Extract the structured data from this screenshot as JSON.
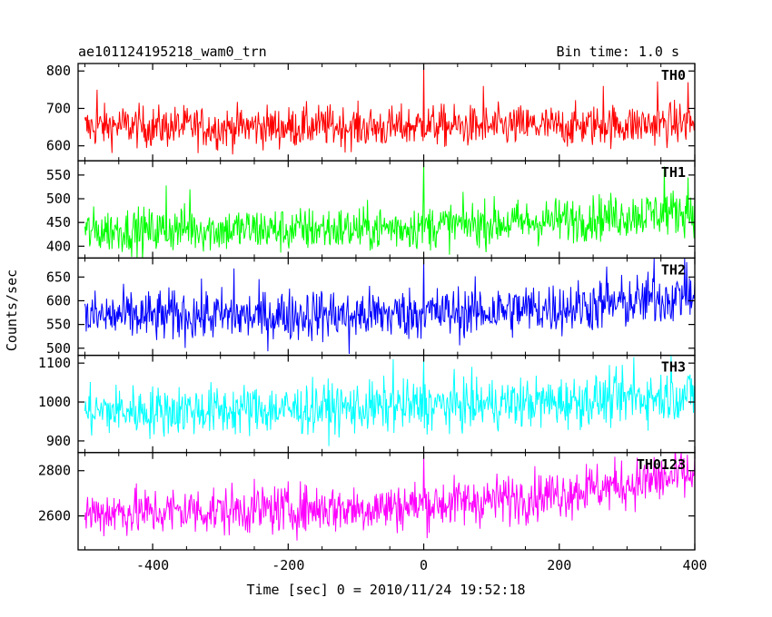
{
  "chart_data": {
    "type": "line",
    "title": "ae101124195218_wam0_trn",
    "bin_time_label": "Bin time: 1.0 s",
    "xlabel": "Time [sec] 0 = 2010/11/24 19:52:18",
    "ylabel": "Counts/sec",
    "xlim": [
      -510,
      400
    ],
    "x_ticks": [
      -400,
      -200,
      0,
      200,
      400
    ],
    "grid": false,
    "panels": [
      {
        "name": "TH0",
        "color": "#ff0000",
        "ylim": [
          560,
          820
        ],
        "y_ticks": [
          600,
          700,
          800
        ],
        "x": [
          -500,
          -450,
          -400,
          -350,
          -300,
          -250,
          -200,
          -150,
          -100,
          -50,
          0,
          50,
          100,
          150,
          200,
          250,
          300,
          350,
          400
        ],
        "y": [
          648,
          655,
          650,
          652,
          647,
          652,
          649,
          654,
          650,
          648,
          655,
          652,
          650,
          654,
          651,
          655,
          656,
          658,
          662
        ],
        "noise": 28,
        "spikes": [
          [
            0,
            820
          ],
          [
            -482,
            750
          ],
          [
            88,
            760
          ],
          [
            265,
            760
          ],
          [
            345,
            772
          ],
          [
            390,
            770
          ]
        ]
      },
      {
        "name": "TH1",
        "color": "#00ff00",
        "ylim": [
          375,
          580
        ],
        "y_ticks": [
          400,
          450,
          500,
          550
        ],
        "x": [
          -500,
          -450,
          -400,
          -350,
          -300,
          -250,
          -200,
          -150,
          -100,
          -50,
          0,
          50,
          100,
          150,
          200,
          250,
          300,
          350,
          400
        ],
        "y": [
          430,
          435,
          432,
          438,
          434,
          436,
          433,
          437,
          435,
          439,
          442,
          445,
          448,
          450,
          455,
          460,
          465,
          470,
          475
        ],
        "noise": 24,
        "spikes": [
          [
            0,
            580
          ],
          [
            -380,
            528
          ],
          [
            -345,
            520
          ],
          [
            355,
            568
          ],
          [
            390,
            545
          ]
        ]
      },
      {
        "name": "TH2",
        "color": "#0000ff",
        "ylim": [
          485,
          690
        ],
        "y_ticks": [
          500,
          550,
          600,
          650
        ],
        "x": [
          -500,
          -450,
          -400,
          -350,
          -300,
          -250,
          -200,
          -150,
          -100,
          -50,
          0,
          50,
          100,
          150,
          200,
          250,
          300,
          350,
          400
        ],
        "y": [
          565,
          568,
          566,
          570,
          568,
          567,
          570,
          572,
          570,
          572,
          574,
          575,
          578,
          582,
          585,
          590,
          595,
          605,
          610
        ],
        "noise": 28,
        "spikes": [
          [
            0,
            690
          ],
          [
            -280,
            668
          ],
          [
            270,
            672
          ],
          [
            340,
            690
          ],
          [
            385,
            690
          ],
          [
            -110,
            488
          ]
        ]
      },
      {
        "name": "TH3",
        "color": "#00ffff",
        "ylim": [
          870,
          1120
        ],
        "y_ticks": [
          900,
          1000,
          1100
        ],
        "x": [
          -500,
          -450,
          -400,
          -350,
          -300,
          -250,
          -200,
          -150,
          -100,
          -50,
          0,
          50,
          100,
          150,
          200,
          250,
          300,
          350,
          400
        ],
        "y": [
          975,
          978,
          976,
          980,
          978,
          982,
          980,
          985,
          984,
          988,
          990,
          992,
          995,
          998,
          1000,
          1005,
          1010,
          1015,
          1020
        ],
        "noise": 33,
        "spikes": [
          [
            0,
            1110
          ],
          [
            -45,
            1110
          ],
          [
            310,
            1115
          ],
          [
            365,
            1120
          ]
        ]
      },
      {
        "name": "TH0123",
        "color": "#ff00ff",
        "ylim": [
          2450,
          2880
        ],
        "y_ticks": [
          2600,
          2800
        ],
        "x": [
          -500,
          -450,
          -400,
          -350,
          -300,
          -250,
          -200,
          -150,
          -100,
          -50,
          0,
          50,
          100,
          150,
          200,
          250,
          300,
          350,
          400
        ],
        "y": [
          2610,
          2620,
          2615,
          2625,
          2622,
          2630,
          2628,
          2636,
          2632,
          2640,
          2650,
          2660,
          2670,
          2685,
          2700,
          2720,
          2740,
          2760,
          2780
        ],
        "noise": 55,
        "spikes": [
          [
            0,
            2880
          ],
          [
            240,
            2830
          ],
          [
            340,
            2860
          ],
          [
            380,
            2880
          ]
        ]
      }
    ]
  }
}
